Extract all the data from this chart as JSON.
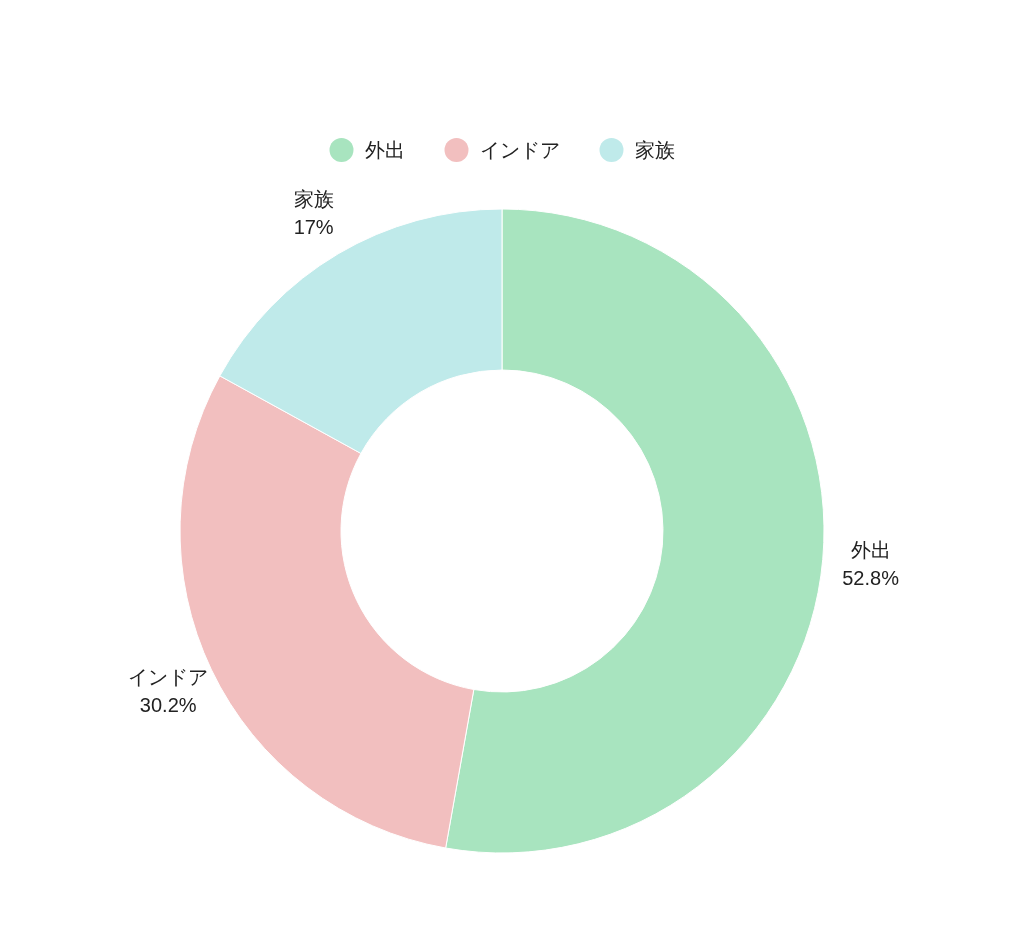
{
  "chart_data": {
    "type": "donut",
    "categories": [
      "外出",
      "インドア",
      "家族"
    ],
    "values": [
      52.8,
      30.2,
      17
    ],
    "value_labels": [
      "52.8%",
      "30.2%",
      "17%"
    ],
    "colors": [
      "#a8e4bf",
      "#f2bfbf",
      "#bfeaea"
    ],
    "legend": "top"
  }
}
